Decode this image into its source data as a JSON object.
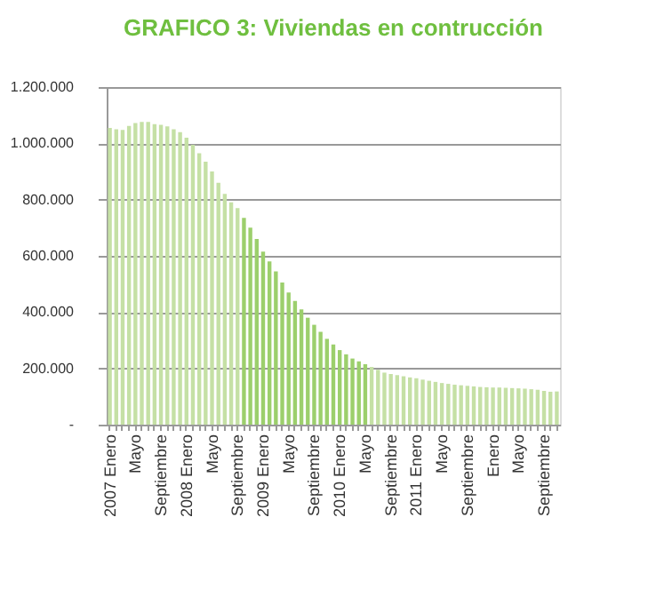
{
  "chart_data": {
    "type": "bar",
    "title": "GRAFICO 3: Viviendas en contrucción",
    "categories": [
      "2007 Enero",
      null,
      null,
      null,
      "Mayo",
      null,
      null,
      null,
      "Septiembre",
      null,
      null,
      null,
      "2008 Enero",
      null,
      null,
      null,
      "Mayo",
      null,
      null,
      null,
      "Septiembre",
      null,
      null,
      null,
      "2009 Enero",
      null,
      null,
      null,
      "Mayo",
      null,
      null,
      null,
      "Septiembre",
      null,
      null,
      null,
      "2010 Enero",
      null,
      null,
      null,
      "Mayo",
      null,
      null,
      null,
      "Septiembre",
      null,
      null,
      null,
      "2011 Enero",
      null,
      null,
      null,
      "Mayo",
      null,
      null,
      null,
      "Septiembre",
      null,
      null,
      null,
      "Enero",
      null,
      null,
      null,
      "Mayo",
      null,
      null,
      null,
      "Septiembre",
      null,
      null
    ],
    "values": [
      1055000,
      1050000,
      1048000,
      1062000,
      1072000,
      1076000,
      1076000,
      1068000,
      1066000,
      1060000,
      1050000,
      1040000,
      1020000,
      995000,
      965000,
      935000,
      900000,
      860000,
      820000,
      790000,
      770000,
      735000,
      700000,
      660000,
      615000,
      580000,
      545000,
      505000,
      470000,
      440000,
      410000,
      380000,
      355000,
      330000,
      305000,
      285000,
      265000,
      250000,
      235000,
      225000,
      215000,
      205000,
      195000,
      185000,
      180000,
      176000,
      172000,
      168000,
      165000,
      160000,
      156000,
      152000,
      148000,
      145000,
      142000,
      140000,
      138000,
      136000,
      134000,
      133000,
      132000,
      132000,
      131000,
      130000,
      129000,
      128000,
      126000,
      124000,
      120000,
      117000,
      118000
    ],
    "colors": [
      "#c5e0a5",
      "#c5e0a5",
      "#c5e0a5",
      "#c5e0a5",
      "#c5e0a5",
      "#c5e0a5",
      "#c5e0a5",
      "#c5e0a5",
      "#c5e0a5",
      "#c5e0a5",
      "#c5e0a5",
      "#c5e0a5",
      "#c5e0a5",
      "#c5e0a5",
      "#c5e0a5",
      "#c5e0a5",
      "#c5e0a5",
      "#c5e0a5",
      "#c5e0a5",
      "#c5e0a5",
      "#c5e0a5",
      "#9ccf6c",
      "#9ccf6c",
      "#9ccf6c",
      "#9ccf6c",
      "#9ccf6c",
      "#9ccf6c",
      "#9ccf6c",
      "#9ccf6c",
      "#9ccf6c",
      "#9ccf6c",
      "#9ccf6c",
      "#9ccf6c",
      "#9ccf6c",
      "#9ccf6c",
      "#9ccf6c",
      "#9ccf6c",
      "#9ccf6c",
      "#9ccf6c",
      "#9ccf6c",
      "#9ccf6c",
      "#c5e0a5",
      "#c5e0a5",
      "#c5e0a5",
      "#c5e0a5",
      "#c5e0a5",
      "#c5e0a5",
      "#c5e0a5",
      "#c5e0a5",
      "#c5e0a5",
      "#c5e0a5",
      "#c5e0a5",
      "#c5e0a5",
      "#c5e0a5",
      "#c5e0a5",
      "#c5e0a5",
      "#c5e0a5",
      "#c5e0a5",
      "#c5e0a5",
      "#c5e0a5",
      "#c5e0a5",
      "#c5e0a5",
      "#c5e0a5",
      "#c5e0a5",
      "#c5e0a5",
      "#c5e0a5",
      "#c5e0a5",
      "#c5e0a5",
      "#c5e0a5",
      "#c5e0a5",
      "#c5e0a5"
    ],
    "ylim": [
      0,
      1200000
    ],
    "yticks": [
      {
        "value": 0,
        "label": "-"
      },
      {
        "value": 200000,
        "label": "200.000"
      },
      {
        "value": 400000,
        "label": "400.000"
      },
      {
        "value": 600000,
        "label": "600.000"
      },
      {
        "value": 800000,
        "label": "800.000"
      },
      {
        "value": 1000000,
        "label": "1.000.000"
      },
      {
        "value": 1200000,
        "label": "1.200.000"
      }
    ],
    "grid": "y"
  }
}
